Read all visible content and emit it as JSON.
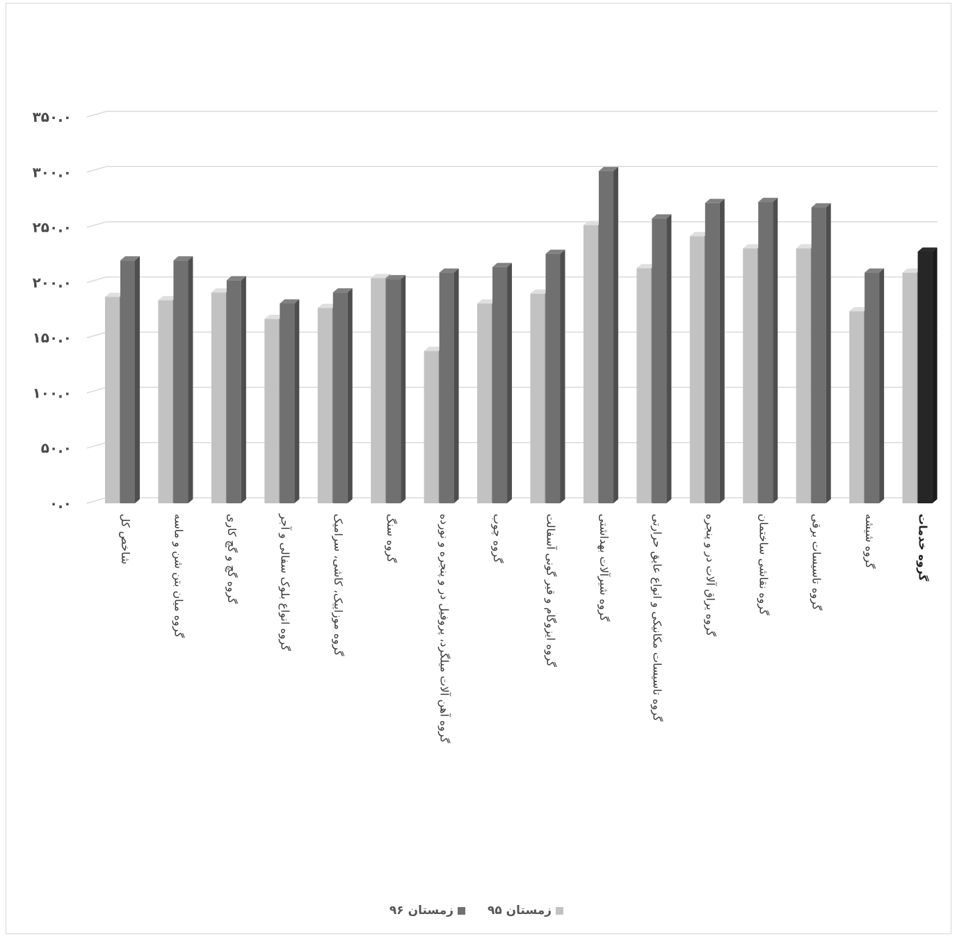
{
  "chart_data": {
    "type": "bar",
    "title": "",
    "xlabel": "",
    "ylabel": "",
    "ylim": [
      0,
      350
    ],
    "yticks": [
      0,
      50,
      100,
      150,
      200,
      250,
      300,
      350
    ],
    "ytick_labels": [
      "۰.۰",
      "۵۰.۰",
      "۱۰۰.۰",
      "۱۵۰.۰",
      "۲۰۰.۰",
      "۲۵۰.۰",
      "۳۰۰.۰",
      "۳۵۰.۰"
    ],
    "grid": true,
    "legend_position": "bottom",
    "categories": [
      "شاخص کل",
      "گروه میان بتن شن و ماسه",
      "گروه گچ و گچ کاری",
      "گروه انواع بلوک سفالی و آجر",
      "گروه موزاییک، کاشی، سرامیک",
      "گروه سنگ",
      "گروه آهن آلات میلگرد، پروفیل در و پنجره و نورده",
      "گروه چوب",
      "گروه ایزوگام و قیر گونی آسفالت",
      "گروه شیرآلات بهداشتی",
      "گروه تاسیسات مکانیکی و انواع عایق حرارتی",
      "گروه یراق آلات در و پنجره",
      "گروه نقاشی ساختمان",
      "گروه تاسیسات برقی",
      "گروه شیشه",
      "گروه خدمات"
    ],
    "series": [
      {
        "name": "زمستان ۹۵",
        "color": "#c2c2c2",
        "values": [
          187,
          184,
          191,
          167,
          177,
          204,
          138,
          181,
          190,
          252,
          213,
          242,
          231,
          231,
          174,
          209
        ]
      },
      {
        "name": "زمستان ۹۶",
        "color": "#707070",
        "values": [
          220,
          220,
          202,
          181,
          191,
          203,
          209,
          214,
          226,
          301,
          258,
          272,
          273,
          268,
          209,
          228
        ]
      }
    ],
    "highlight": {
      "category_index": 15,
      "series_index": 1,
      "color": "#262626"
    }
  }
}
